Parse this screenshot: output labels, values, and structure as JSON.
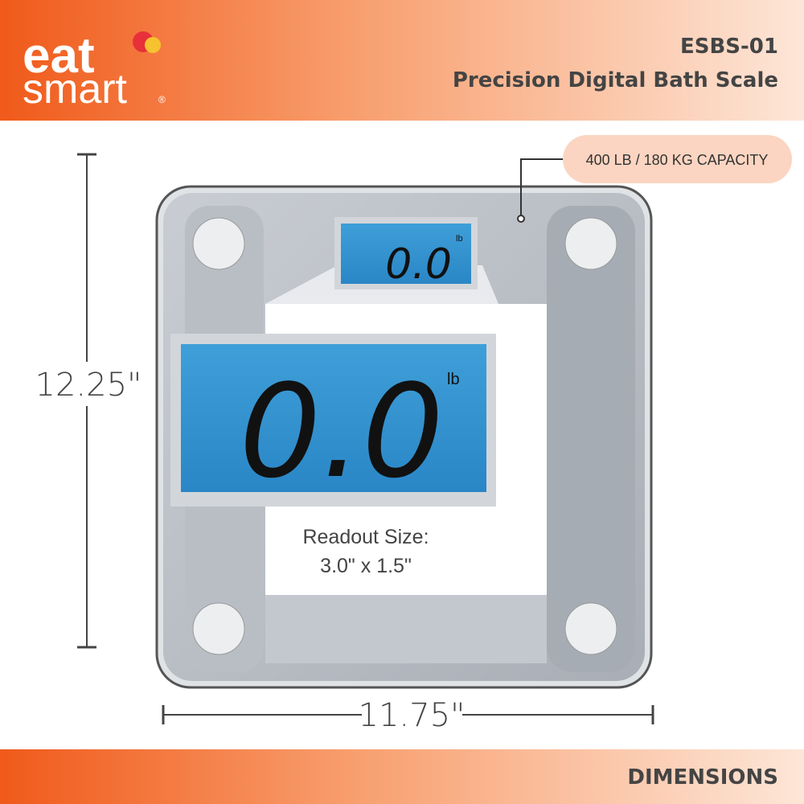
{
  "logo": {
    "line1": "eat",
    "line2": "smart",
    "mark": "®"
  },
  "header": {
    "model": "ESBS-01",
    "title": "Precision Digital Bath Scale"
  },
  "callout": "400 LB / 180 KG CAPACITY",
  "display_small": {
    "reading": "0.0",
    "unit": "lb"
  },
  "display_large": {
    "reading": "0.0",
    "unit": "lb"
  },
  "readout": {
    "line1": "Readout Size:",
    "line2": "3.0\" x 1.5\""
  },
  "dimensions": {
    "height": "12.25\"",
    "width": "11.75\""
  },
  "footer": "DIMENSIONS"
}
